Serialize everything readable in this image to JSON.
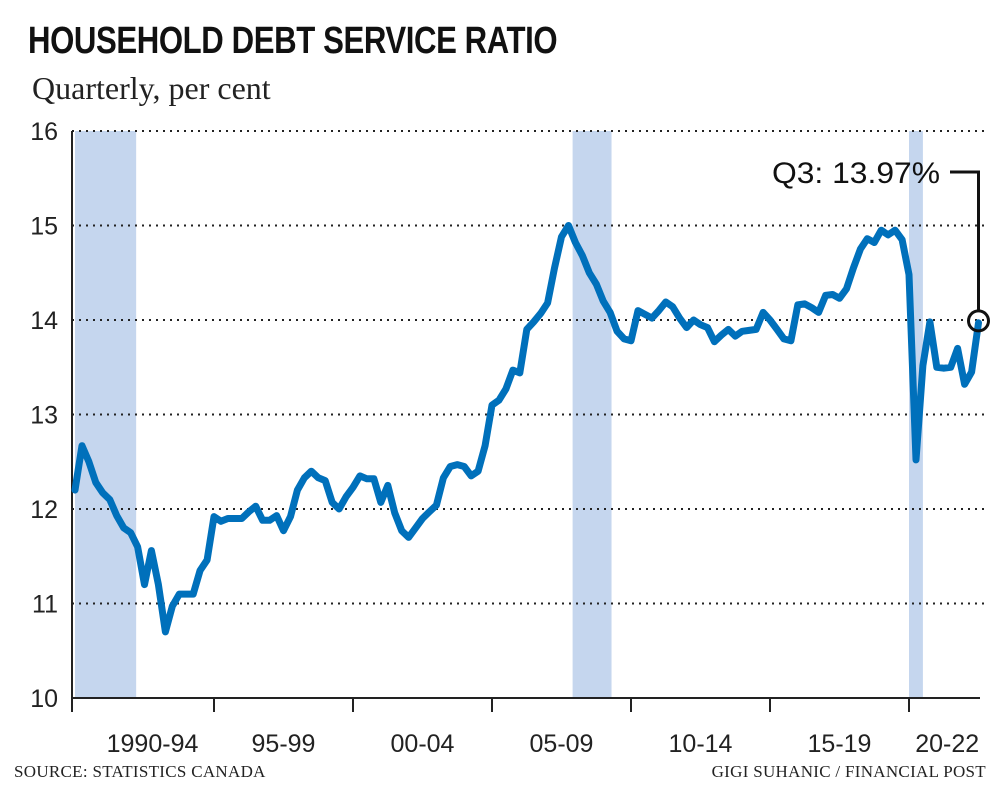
{
  "header": {
    "title": "HOUSEHOLD DEBT SERVICE RATIO",
    "subtitle": "Quarterly, per cent"
  },
  "footer": {
    "source": "SOURCE: STATISTICS CANADA",
    "credit": "GIGI SUHANIC / FINANCIAL POST"
  },
  "colors": {
    "line": "#0070bb",
    "recession": "#c5d6ee",
    "grid": "#222222"
  },
  "chart_data": {
    "type": "line",
    "title": "HOUSEHOLD DEBT SERVICE RATIO",
    "subtitle": "Quarterly, per cent",
    "x_start": "1990 Q1",
    "x_end": "2022 Q3",
    "frequency": "quarterly",
    "ylim": [
      10,
      16
    ],
    "yticks": [
      "10",
      "11",
      "12",
      "13",
      "14",
      "15",
      "16"
    ],
    "xtick_labels": [
      "1990-94",
      "95-99",
      "00-04",
      "05-09",
      "10-14",
      "15-19",
      "20-22"
    ],
    "grid": "horizontal dotted",
    "recession_periods": [
      [
        1990.0,
        1992.2
      ],
      [
        2007.9,
        2009.3
      ],
      [
        2020.0,
        2020.5
      ]
    ],
    "values": [
      12.2,
      12.67,
      12.5,
      12.28,
      12.17,
      12.1,
      11.93,
      11.8,
      11.75,
      11.6,
      11.2,
      11.56,
      11.2,
      10.7,
      10.97,
      11.1,
      11.1,
      11.1,
      11.35,
      11.46,
      11.92,
      11.87,
      11.9,
      11.9,
      11.9,
      11.97,
      12.03,
      11.88,
      11.88,
      11.93,
      11.77,
      11.92,
      12.2,
      12.33,
      12.4,
      12.33,
      12.3,
      12.07,
      12.0,
      12.13,
      12.23,
      12.35,
      12.32,
      12.32,
      12.07,
      12.25,
      11.96,
      11.77,
      11.7,
      11.8,
      11.9,
      11.97,
      12.04,
      12.33,
      12.45,
      12.47,
      12.45,
      12.35,
      12.4,
      12.67,
      13.1,
      13.15,
      13.27,
      13.47,
      13.44,
      13.9,
      13.98,
      14.07,
      14.18,
      14.55,
      14.88,
      15.0,
      14.82,
      14.68,
      14.5,
      14.38,
      14.2,
      14.08,
      13.88,
      13.8,
      13.78,
      14.1,
      14.06,
      14.02,
      14.1,
      14.19,
      14.14,
      14.02,
      13.92,
      14.0,
      13.95,
      13.92,
      13.77,
      13.84,
      13.9,
      13.83,
      13.88,
      13.89,
      13.9,
      14.08,
      14.0,
      13.9,
      13.8,
      13.78,
      14.16,
      14.17,
      14.13,
      14.08,
      14.26,
      14.27,
      14.23,
      14.33,
      14.55,
      14.75,
      14.86,
      14.82,
      14.95,
      14.9,
      14.95,
      14.85,
      14.48,
      12.52,
      13.52,
      13.98,
      13.5,
      13.49,
      13.5,
      13.7,
      13.32,
      13.45,
      13.97
    ],
    "annotation": {
      "label": "Q3: 13.97%",
      "value": 13.97
    }
  }
}
